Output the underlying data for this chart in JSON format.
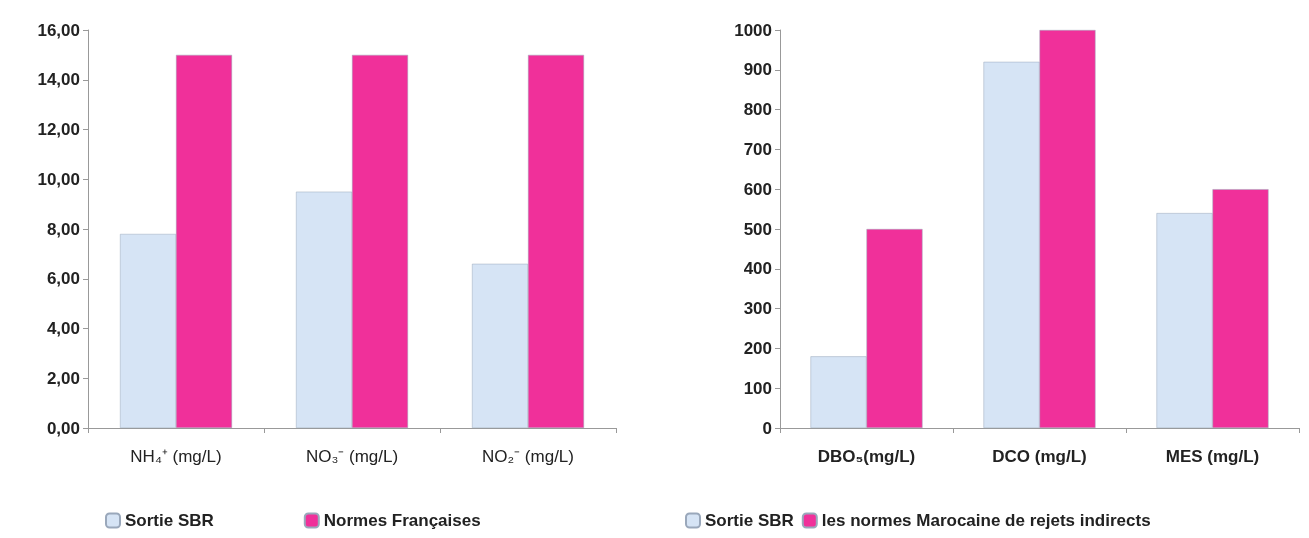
{
  "chart_data": [
    {
      "type": "bar",
      "categories": [
        "NH₄⁺ (mg/L)",
        "NO₃⁻ (mg/L)",
        "NO₂⁻ (mg/L)"
      ],
      "series": [
        {
          "name": "Sortie SBR",
          "color": "#d6e4f5",
          "values": [
            7.8,
            9.5,
            6.6
          ]
        },
        {
          "name": "Normes Françaises",
          "color": "#f0309a",
          "values": [
            15,
            15,
            15
          ]
        }
      ],
      "ylim": [
        0,
        16
      ],
      "yticks": [
        {
          "value": 0,
          "label": "0,00"
        },
        {
          "value": 2,
          "label": "2,00"
        },
        {
          "value": 4,
          "label": "4,00"
        },
        {
          "value": 6,
          "label": "6,00"
        },
        {
          "value": 8,
          "label": "8,00"
        },
        {
          "value": 10,
          "label": "10,00"
        },
        {
          "value": 12,
          "label": "12,00"
        },
        {
          "value": 14,
          "label": "14,00"
        },
        {
          "value": 16,
          "label": "16,00"
        }
      ],
      "legend": "bottom"
    },
    {
      "type": "bar",
      "categories": [
        "DBO₅(mg/L)",
        "DCO (mg/L)",
        "MES (mg/L)"
      ],
      "series": [
        {
          "name": "Sortie SBR",
          "color": "#d6e4f5",
          "values": [
            180,
            920,
            540
          ]
        },
        {
          "name": "les normes Marocaine de rejets indirects",
          "color": "#f0309a",
          "values": [
            500,
            1000,
            600
          ]
        }
      ],
      "ylim": [
        0,
        1000
      ],
      "yticks": [
        0,
        100,
        200,
        300,
        400,
        500,
        600,
        700,
        800,
        900,
        1000
      ],
      "legend": "bottom"
    }
  ]
}
